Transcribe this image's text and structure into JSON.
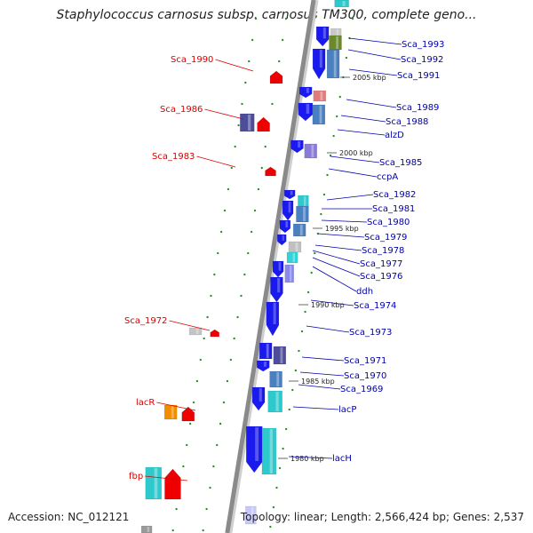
{
  "title": "Staphylococcus carnosus subsp. carnosus TM300, complete geno...",
  "footer": {
    "accession": "Accession: NC_012121",
    "topology": "Topology: linear; Length: 2,566,424 bp; Genes: 2,537"
  },
  "colors": {
    "left_label": "#dd0000",
    "right_label": "#0000aa",
    "backbone": "#8a8a8a",
    "tick": "#228b22"
  },
  "right_labels": [
    "Sca_1993",
    "Sca_1992",
    "Sca_1991",
    "Sca_1989",
    "Sca_1988",
    "alzD",
    "Sca_1985",
    "ccpA",
    "Sca_1982",
    "Sca_1981",
    "Sca_1980",
    "Sca_1979",
    "Sca_1978",
    "Sca_1977",
    "Sca_1976",
    "ddh",
    "Sca_1974",
    "Sca_1973",
    "Sca_1971",
    "Sca_1970",
    "Sca_1969",
    "lacP",
    "lacH"
  ],
  "left_labels": [
    "Sca_1990",
    "Sca_1986",
    "Sca_1983",
    "Sca_1972",
    "lacR",
    "fbp"
  ],
  "kbp_labels": [
    "2005 kbp",
    "2000 kbp",
    "1995 kbp",
    "1990 kbp",
    "1985 kbp",
    "1980 kbp"
  ]
}
